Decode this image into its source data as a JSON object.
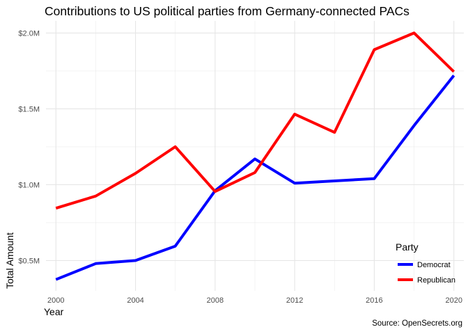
{
  "chart_data": {
    "type": "line",
    "title": "Contributions to US political parties from Germany-connected PACs",
    "xlabel": "Year",
    "ylabel": "Total Amount",
    "caption": "Source: OpenSecrets.org",
    "x": [
      2000,
      2002,
      2004,
      2006,
      2008,
      2010,
      2012,
      2014,
      2016,
      2018,
      2020
    ],
    "series": [
      {
        "name": "Democrat",
        "color": "#0000ff",
        "values": [
          375000,
          480000,
          500000,
          595000,
          960000,
          1170000,
          1010000,
          1025000,
          1040000,
          1390000,
          1720000
        ]
      },
      {
        "name": "Republican",
        "color": "#ff0000",
        "values": [
          845000,
          925000,
          1075000,
          1250000,
          955000,
          1080000,
          1465000,
          1345000,
          1890000,
          2000000,
          1745000
        ]
      }
    ],
    "x_ticks": [
      2000,
      2004,
      2008,
      2012,
      2016,
      2020
    ],
    "x_tick_labels": [
      "2000",
      "2004",
      "2008",
      "2012",
      "2016",
      "2020"
    ],
    "y_ticks": [
      500000,
      1000000,
      1500000,
      2000000
    ],
    "y_tick_labels": [
      "$0.5M",
      "$1.0M",
      "$1.5M",
      "$2.0M"
    ],
    "xlim": [
      1999.5,
      2020.5
    ],
    "ylim": [
      300000,
      2080000
    ],
    "grid": true,
    "legend": {
      "title": "Party",
      "placement": "right"
    }
  }
}
